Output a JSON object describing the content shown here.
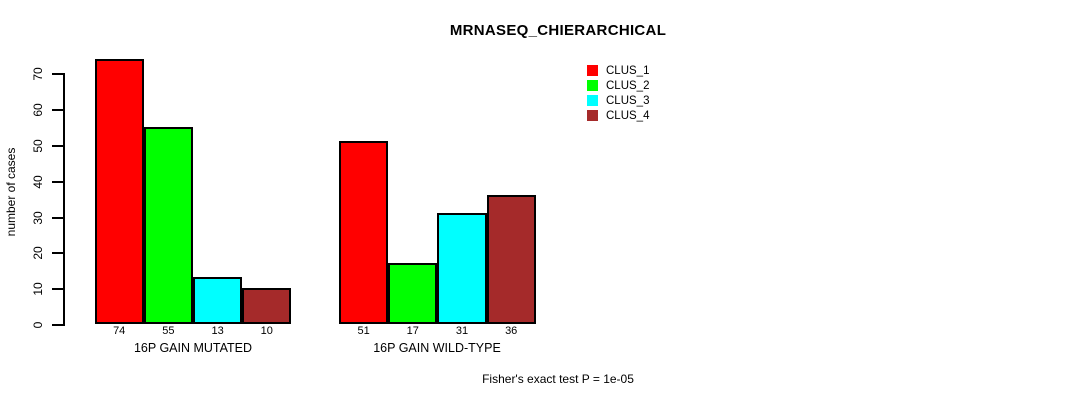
{
  "chart_data": {
    "type": "bar",
    "title": "MRNASEQ_CHIERARCHICAL",
    "ylabel": "number of cases",
    "ylim": [
      0,
      74
    ],
    "yticks": [
      0,
      10,
      20,
      30,
      40,
      50,
      60,
      70
    ],
    "grid": false,
    "categories": [
      "16P GAIN MUTATED",
      "16P GAIN WILD-TYPE"
    ],
    "series": [
      {
        "name": "CLUS_1",
        "color": "#ff0000",
        "values": [
          74,
          51
        ]
      },
      {
        "name": "CLUS_2",
        "color": "#00ff00",
        "values": [
          55,
          17
        ]
      },
      {
        "name": "CLUS_3",
        "color": "#00ffff",
        "values": [
          13,
          31
        ]
      },
      {
        "name": "CLUS_4",
        "color": "#a52a2a",
        "values": [
          10,
          36
        ]
      }
    ],
    "legend_position": "top-right",
    "bar_value_labels_shown": true,
    "annotation": "Fisher's exact test P = 1e-05"
  }
}
